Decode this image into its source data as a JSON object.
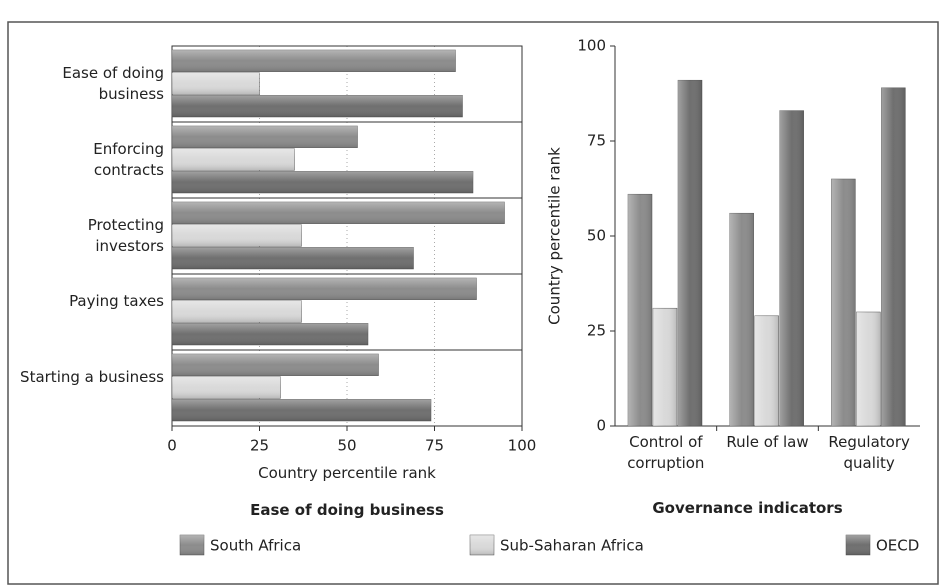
{
  "chart_data": [
    {
      "type": "bar",
      "orientation": "horizontal",
      "title": "Ease of doing business",
      "x_label": "Country percentile rank",
      "categories": [
        "Ease of doing business",
        "Enforcing contracts",
        "Protecting investors",
        "Paying taxes",
        "Starting a business"
      ],
      "series": [
        {
          "name": "South Africa",
          "color": "#8c8c8c",
          "values": [
            81,
            53,
            95,
            87,
            59
          ]
        },
        {
          "name": "Sub-Saharan Africa",
          "color": "#d9d9d9",
          "values": [
            25,
            35,
            37,
            37,
            31
          ]
        },
        {
          "name": "OECD",
          "color": "#6f6f6f",
          "values": [
            83,
            86,
            69,
            56,
            74
          ]
        }
      ],
      "xlim": [
        0,
        100
      ],
      "xticks": [
        0,
        25,
        50,
        75,
        100
      ],
      "grid": true
    },
    {
      "type": "bar",
      "orientation": "vertical",
      "title": "Governance indicators",
      "y_label": "Country percentile rank",
      "categories": [
        "Control of corruption",
        "Rule of law",
        "Regulatory quality"
      ],
      "series": [
        {
          "color": "#8c8c8c",
          "values": [
            61,
            56,
            65
          ]
        },
        {
          "color": "#d9d9d9",
          "values": [
            31,
            29,
            30
          ]
        },
        {
          "color": "#6f6f6f",
          "values": [
            91,
            83,
            89
          ]
        }
      ],
      "ylim": [
        0,
        100
      ],
      "yticks": [
        0,
        25,
        50,
        75,
        100
      ],
      "grid": false
    }
  ]
}
